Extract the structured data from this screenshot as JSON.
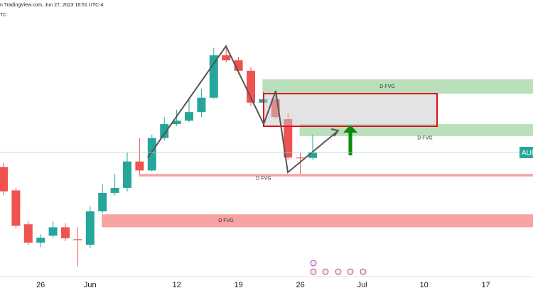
{
  "chart_data": {
    "type": "candlestick",
    "title": "n TradingView.com, Jun 27, 2023 16:51 UTC-4",
    "subtitle": "TC",
    "price_label": "AUD",
    "categories": [
      null,
      null,
      null,
      "26",
      null,
      null,
      null,
      "Jun",
      null,
      null,
      null,
      null,
      null,
      null,
      "12",
      null,
      null,
      null,
      null,
      "19",
      null,
      null,
      null,
      null,
      "26",
      null,
      null,
      null,
      null,
      "Jul",
      null,
      null,
      null,
      null,
      "10",
      null,
      null,
      null,
      null,
      "17",
      null,
      null,
      null
    ],
    "open": [
      0.6657,
      0.661,
      0.6542,
      0.6505,
      0.6519,
      0.6536,
      0.6512,
      0.6501,
      0.6568,
      0.6605,
      0.6615,
      0.6668,
      0.665,
      0.6715,
      0.6743,
      0.675,
      0.6767,
      0.6796,
      0.6881,
      0.6871,
      0.685,
      0.6786,
      0.6793,
      0.6753,
      0.6676,
      0.6675,
      null,
      null,
      null,
      null,
      null,
      null,
      null,
      null,
      null,
      null,
      null,
      null,
      null,
      null,
      null,
      null,
      null
    ],
    "high": [
      0.6665,
      0.6615,
      0.6548,
      0.6522,
      0.6548,
      0.6544,
      0.6536,
      0.6579,
      0.6622,
      0.6643,
      0.6686,
      0.6715,
      0.6722,
      0.6757,
      0.6772,
      0.6793,
      0.6814,
      0.6896,
      0.69,
      0.6878,
      0.6857,
      0.6808,
      0.681,
      0.6764,
      0.6686,
      0.6722,
      null,
      null,
      null,
      null,
      null,
      null,
      null,
      null,
      null,
      null,
      null,
      null,
      null,
      null,
      null,
      null,
      null
    ],
    "low": [
      0.66,
      0.6534,
      0.6501,
      0.6496,
      0.6515,
      0.6508,
      0.6458,
      0.6494,
      0.6565,
      0.66,
      0.6608,
      0.6643,
      0.6648,
      0.671,
      0.6739,
      0.6747,
      0.6757,
      0.6793,
      0.6867,
      0.6843,
      0.6779,
      0.6779,
      0.6753,
      0.6672,
      0.6643,
      0.6672,
      null,
      null,
      null,
      null,
      null,
      null,
      null,
      null,
      null,
      null,
      null,
      null,
      null,
      null,
      null,
      null,
      null
    ],
    "close": [
      0.6608,
      0.6539,
      0.6505,
      0.6515,
      0.6536,
      0.6514,
      0.6511,
      0.6568,
      0.6605,
      0.6615,
      0.6668,
      0.665,
      0.6715,
      0.6743,
      0.675,
      0.6767,
      0.6796,
      0.6881,
      0.6871,
      0.685,
      0.6786,
      0.6793,
      0.6757,
      0.6676,
      0.6675,
      0.6686,
      null,
      null,
      null,
      null,
      null,
      null,
      null,
      null,
      null,
      null,
      null,
      null,
      null,
      null,
      null,
      null,
      null
    ],
    "up_color": "#26a69a",
    "down_color": "#ef5350",
    "ylim": [
      0.6437,
      0.6992
    ],
    "grid": false,
    "zones": [
      {
        "label": "D FVG",
        "top": 0.6833,
        "bottom": 0.6804,
        "color": "#b9e0bb"
      },
      {
        "label": "D FVG",
        "top": 0.6743,
        "bottom": 0.6719,
        "color": "#b9e0bb"
      },
      {
        "label": "D FVG",
        "top": 0.6643,
        "bottom": 0.6638,
        "color": "#f7a3a3"
      },
      {
        "label": "D FVG",
        "top": 0.6562,
        "bottom": 0.6536,
        "color": "#f7a3a3"
      }
    ]
  }
}
